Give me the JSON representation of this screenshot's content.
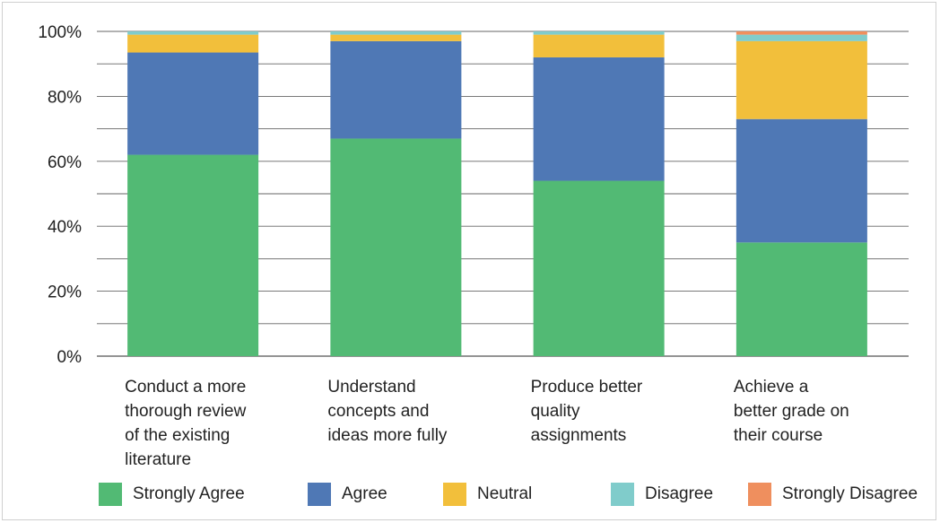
{
  "chart_data": {
    "type": "bar",
    "stacked": true,
    "categories": [
      "Conduct a more\nthorough review\nof the existing\nliterature",
      "Understand\nconcepts and\nideas more fully",
      "Produce better\nquality\nassignments",
      "Achieve a\nbetter grade on\ntheir course"
    ],
    "series": [
      {
        "name": "Strongly Agree",
        "color": "#52ba74",
        "values": [
          62,
          67,
          54,
          35
        ]
      },
      {
        "name": "Agree",
        "color": "#4f78b5",
        "values": [
          31.5,
          30,
          38,
          38
        ]
      },
      {
        "name": "Neutral",
        "color": "#f2bf3b",
        "values": [
          5.5,
          2,
          7,
          24
        ]
      },
      {
        "name": "Disagree",
        "color": "#80cccb",
        "values": [
          1,
          1,
          1,
          2
        ]
      },
      {
        "name": "Strongly Disagree",
        "color": "#ef8f5e",
        "values": [
          0,
          0,
          0,
          1
        ]
      }
    ],
    "y_ticks": [
      "0%",
      "20%",
      "40%",
      "60%",
      "80%",
      "100%"
    ],
    "ylim": [
      0,
      100
    ],
    "grid": true,
    "legend": "bottom",
    "title": "",
    "xlabel": "",
    "ylabel": ""
  }
}
